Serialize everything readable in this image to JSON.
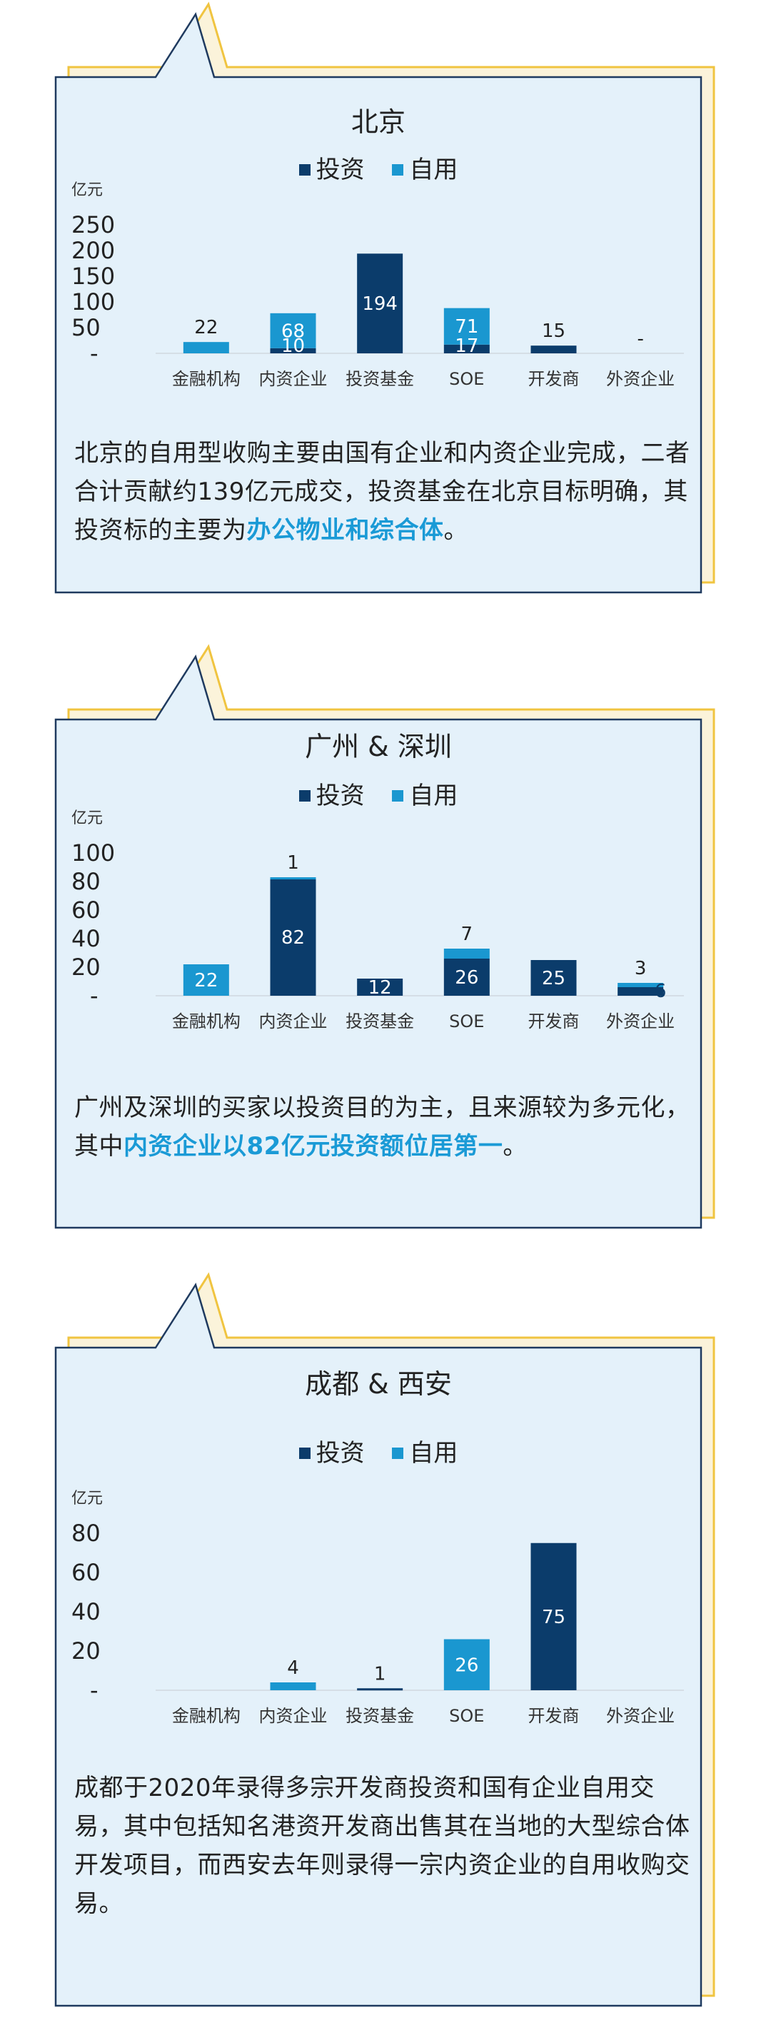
{
  "colors": {
    "invest": "#0b3c6b",
    "self_use": "#1a97d0",
    "frame_border": "#1f3a5f",
    "frame_fill": "#e4f1fa",
    "shadow": "#f0c440"
  },
  "legend": {
    "invest": "投资",
    "self_use": "自用"
  },
  "unit": "亿元",
  "sections": [
    {
      "id": "beijing",
      "chart_data": {
        "type": "bar",
        "stacked": true,
        "title": "北京",
        "unit": "亿元",
        "categories": [
          "金融机构",
          "内资企业",
          "投资基金",
          "SOE",
          "开发商",
          "外资企业"
        ],
        "series": [
          {
            "name": "投资",
            "values": [
              0,
              10,
              194,
              17,
              15,
              0
            ]
          },
          {
            "name": "自用",
            "values": [
              22,
              68,
              0,
              71,
              0,
              0
            ]
          }
        ],
        "labels": [
          [
            {
              "text": "22",
              "pos": "above"
            }
          ],
          [
            {
              "text": "10",
              "pos": "invest"
            },
            {
              "text": "68",
              "pos": "self"
            }
          ],
          [
            {
              "text": "194",
              "pos": "invest"
            }
          ],
          [
            {
              "text": "17",
              "pos": "invest"
            },
            {
              "text": "71",
              "pos": "self"
            }
          ],
          [
            {
              "text": "15",
              "pos": "above"
            }
          ],
          [
            {
              "text": "-",
              "pos": "above"
            }
          ]
        ],
        "yticks": [
          "-",
          "50",
          "100",
          "150",
          "200",
          "250"
        ],
        "ylim": [
          0,
          250
        ]
      },
      "description": {
        "text": "北京的自用型收购主要由国有企业和内资企业完成，二者合计贡献约139亿元成交，投资基金在北京目标明确，其投资标的主要为",
        "highlight": "办公物业和综合体",
        "tail": "。"
      }
    },
    {
      "id": "guangzhou_shenzhen",
      "chart_data": {
        "type": "bar",
        "stacked": true,
        "title": "广州 & 深圳",
        "unit": "亿元",
        "categories": [
          "金融机构",
          "内资企业",
          "投资基金",
          "SOE",
          "开发商",
          "外资企业"
        ],
        "series": [
          {
            "name": "投资",
            "values": [
              0,
              82,
              12,
              26,
              25,
              6
            ]
          },
          {
            "name": "自用",
            "values": [
              22,
              1,
              0,
              7,
              0,
              3
            ]
          }
        ],
        "labels": [
          [
            {
              "text": "22",
              "pos": "self"
            }
          ],
          [
            {
              "text": "82",
              "pos": "invest"
            },
            {
              "text": "1",
              "pos": "above"
            }
          ],
          [
            {
              "text": "12",
              "pos": "invest"
            }
          ],
          [
            {
              "text": "26",
              "pos": "invest"
            },
            {
              "text": "7",
              "pos": "above"
            }
          ],
          [
            {
              "text": "25",
              "pos": "invest"
            }
          ],
          [
            {
              "text": "6",
              "pos": "right"
            },
            {
              "text": "3",
              "pos": "above"
            }
          ]
        ],
        "yticks": [
          "-",
          "20",
          "40",
          "60",
          "80",
          "100"
        ],
        "ylim": [
          0,
          100
        ]
      },
      "description": {
        "text": "广州及深圳的买家以投资目的为主，且来源较为多元化，其中",
        "highlight": "内资企业以82亿元投资额位居第一",
        "tail": "。"
      }
    },
    {
      "id": "chengdu_xian",
      "chart_data": {
        "type": "bar",
        "stacked": true,
        "title": "成都 & 西安",
        "unit": "亿元",
        "categories": [
          "金融机构",
          "内资企业",
          "投资基金",
          "SOE",
          "开发商",
          "外资企业"
        ],
        "series": [
          {
            "name": "投资",
            "values": [
              0,
              0,
              1,
              0,
              75,
              0
            ]
          },
          {
            "name": "自用",
            "values": [
              0,
              4,
              0,
              26,
              0,
              0
            ]
          }
        ],
        "labels": [
          [],
          [
            {
              "text": "4",
              "pos": "above"
            }
          ],
          [
            {
              "text": "1",
              "pos": "above"
            }
          ],
          [
            {
              "text": "26",
              "pos": "self"
            }
          ],
          [
            {
              "text": "75",
              "pos": "invest"
            }
          ],
          []
        ],
        "yticks": [
          "-",
          "20",
          "40",
          "60",
          "80"
        ],
        "ylim": [
          0,
          80
        ]
      },
      "description": {
        "text": "成都于2020年录得多宗开发商投资和国有企业自用交易，其中包括知名港资开发商出售其在当地的大型综合体开发项目，而西安去年则录得一宗内资企业的自用收购交易。",
        "highlight": "",
        "tail": ""
      }
    }
  ]
}
